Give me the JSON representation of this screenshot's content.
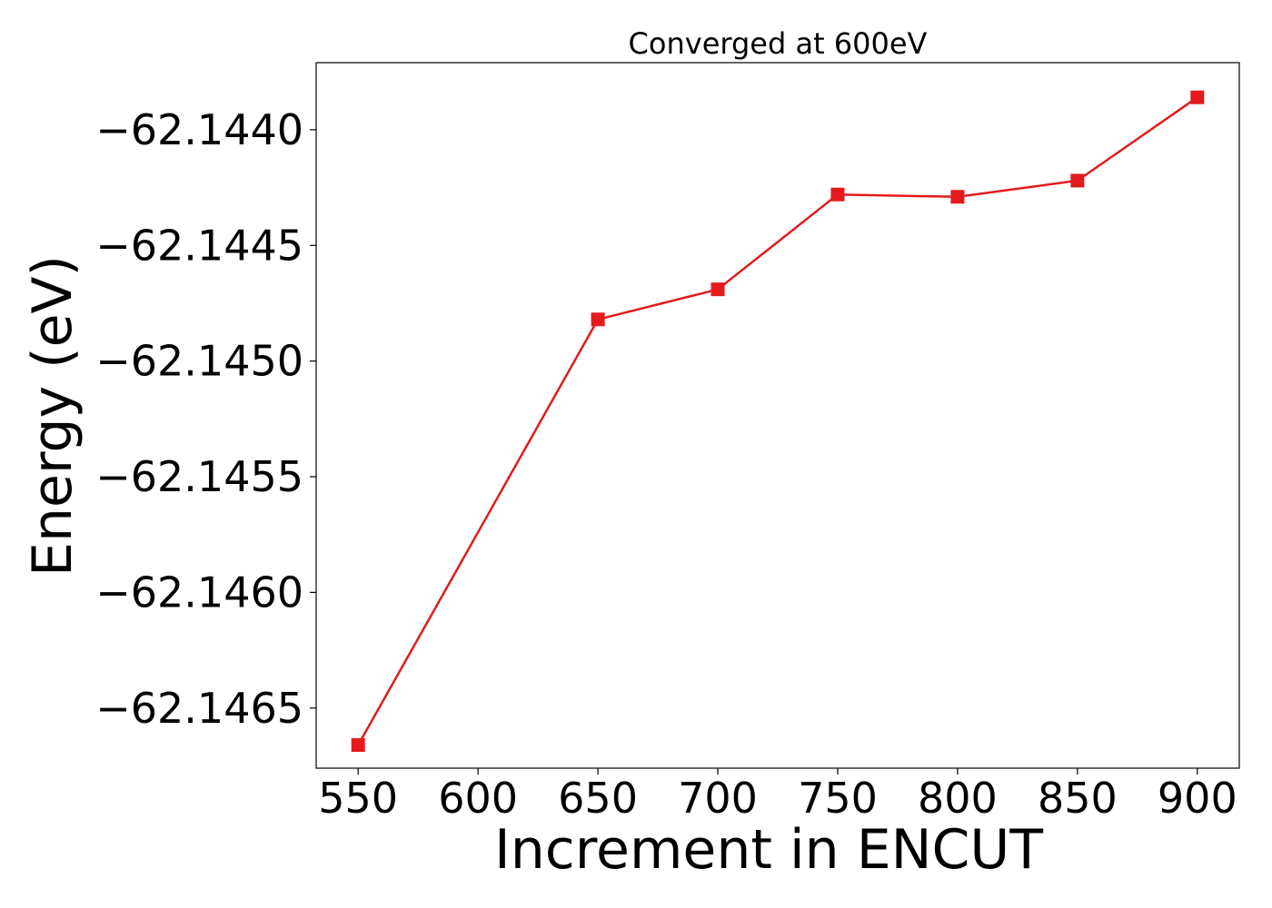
{
  "chart_data": {
    "type": "line",
    "title": "Converged at 600eV",
    "xlabel": "Increment in ENCUT",
    "ylabel": "Energy (eV)",
    "x": [
      550,
      650,
      700,
      750,
      800,
      850,
      900
    ],
    "series": [
      {
        "values": [
          -62.14666,
          -62.14482,
          -62.14469,
          -62.14428,
          -62.14429,
          -62.14422,
          -62.14386
        ],
        "color": "#e41a1c",
        "marker": "square"
      }
    ],
    "xticks": [
      550,
      600,
      650,
      700,
      750,
      800,
      850,
      900
    ],
    "xtick_labels": [
      "550",
      "600",
      "650",
      "700",
      "750",
      "800",
      "850",
      "900"
    ],
    "yticks": [
      -62.144,
      -62.1445,
      -62.145,
      -62.1455,
      -62.146,
      -62.1465
    ],
    "ytick_labels": [
      "−62.1440",
      "−62.1445",
      "−62.1450",
      "−62.1455",
      "−62.1460",
      "−62.1465"
    ],
    "xlim": [
      532.5,
      917.5
    ],
    "ylim": [
      -62.14676,
      -62.14371
    ],
    "grid": false,
    "legend": false
  }
}
